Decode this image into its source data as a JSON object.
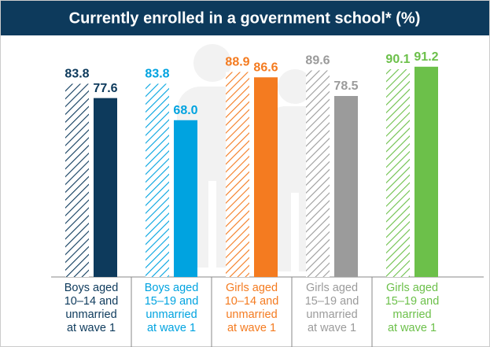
{
  "chart_data": {
    "type": "bar",
    "title": "Currently enrolled in a government school* (%)",
    "categories": [
      [
        "Boys aged",
        "10–14 and",
        "unmarried",
        "at wave 1"
      ],
      [
        "Boys aged",
        "15–19 and",
        "unmarried",
        "at wave 1"
      ],
      [
        "Girls aged",
        "10–14 and",
        "unmarried",
        "at wave 1"
      ],
      [
        "Girls aged",
        "15–19 and",
        "unmarried",
        "at wave 1"
      ],
      [
        "Girls aged",
        "15–19 and",
        "married",
        "at wave 1"
      ]
    ],
    "colors": [
      "#0d3a5c",
      "#00a3e0",
      "#f47b20",
      "#9b9b9b",
      "#6cc04a"
    ],
    "series": [
      {
        "pattern": "hatched",
        "values": [
          83.8,
          83.8,
          88.9,
          89.6,
          90.1
        ],
        "value_labels": [
          "83.8",
          "83.8",
          "88.9",
          "89.6",
          "90.1"
        ]
      },
      {
        "pattern": "solid",
        "values": [
          77.6,
          68.0,
          86.6,
          78.5,
          91.2
        ],
        "value_labels": [
          "77.6",
          "68.0",
          "86.6",
          "78.5",
          "91.2"
        ]
      }
    ],
    "ylim": [
      0,
      100
    ],
    "title_color": "#0d3a5c"
  }
}
